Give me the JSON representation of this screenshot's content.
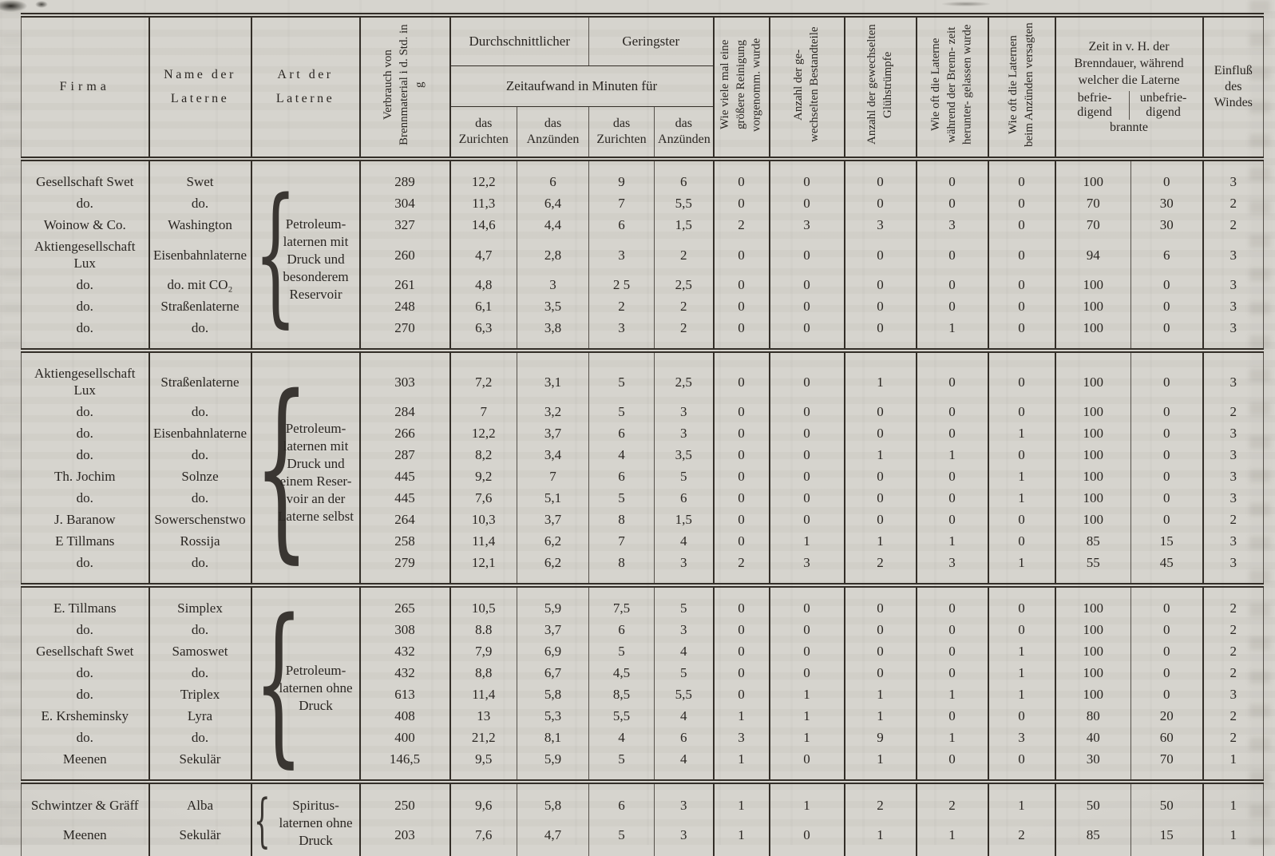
{
  "page": {
    "paper_color": "#d6d4ce",
    "ink_color": "#2a2622"
  },
  "table": {
    "headers": {
      "firma": "Firma",
      "name": "Name der Laterne",
      "art": "Art der Laterne",
      "verbrauch": "Verbrauch von Brennmaterial i d. Std. in g",
      "durchschnittlicher": "Durchschnittlicher",
      "geringster": "Geringster",
      "zeitaufwand": "Zeitaufwand in Minuten für",
      "das_zurichten": "das Zurichten",
      "das_anzuenden": "das Anzünden",
      "reinigung": "Wie viele mal eine größere Reinigung vorgenomm. wurde",
      "bestandteile": "Anzahl der ge- wechselten Bestandteile",
      "gluehstruempfe": "Anzahl der gewechselten Glühstrümpfe",
      "heruntergelassen": "Wie oft die Laterne während der Brenn- zeit herunter- gelassen wurde",
      "versagten": "Wie oft die Laternen beim Anzünden versagten",
      "zeit_title": "Zeit in v. H. der Brenndauer, während welcher die Laterne",
      "befriedigend": "befrie- digend",
      "unbefriedigend": "unbefrie- digend",
      "brannte": "brannte",
      "einfluss": "Einfluß des Windes"
    },
    "value_columns": [
      "verbrauch",
      "zurichten_durchschnittlich",
      "anzuenden_durchschnittlich",
      "zurichten_geringster",
      "anzuenden_geringster",
      "reinigungen",
      "bestandteile",
      "gluehstruempfe",
      "heruntergelassen",
      "versagten",
      "befriedigend_vh",
      "unbefriedigend_vh",
      "einfluss_windes"
    ],
    "sections": [
      {
        "art_lines": [
          "Petroleum-",
          "laternen mit",
          "Druck und",
          "besonderem",
          "Reservoir"
        ],
        "rows": [
          {
            "firma": "Gesellschaft Swet",
            "name": "Swet",
            "values": [
              "289",
              "12,2",
              "6",
              "9",
              "6",
              "0",
              "0",
              "0",
              "0",
              "0",
              "100",
              "0",
              "3"
            ]
          },
          {
            "firma": "do.",
            "name": "do.",
            "values": [
              "304",
              "11,3",
              "6,4",
              "7",
              "5,5",
              "0",
              "0",
              "0",
              "0",
              "0",
              "70",
              "30",
              "2"
            ]
          },
          {
            "firma": "Woinow & Co.",
            "name": "Washington",
            "values": [
              "327",
              "14,6",
              "4,4",
              "6",
              "1,5",
              "2",
              "3",
              "3",
              "3",
              "0",
              "70",
              "30",
              "2"
            ]
          },
          {
            "firma": "Aktiengesellschaft Lux",
            "name": "Eisenbahnlaterne",
            "values": [
              "260",
              "4,7",
              "2,8",
              "3",
              "2",
              "0",
              "0",
              "0",
              "0",
              "0",
              "94",
              "6",
              "3"
            ]
          },
          {
            "firma": "do.",
            "name": "do. mit CO₂",
            "values": [
              "261",
              "4,8",
              "3",
              "2 5",
              "2,5",
              "0",
              "0",
              "0",
              "0",
              "0",
              "100",
              "0",
              "3"
            ]
          },
          {
            "firma": "do.",
            "name": "Straßenlaterne",
            "values": [
              "248",
              "6,1",
              "3,5",
              "2",
              "2",
              "0",
              "0",
              "0",
              "0",
              "0",
              "100",
              "0",
              "3"
            ]
          },
          {
            "firma": "do.",
            "name": "do.",
            "values": [
              "270",
              "6,3",
              "3,8",
              "3",
              "2",
              "0",
              "0",
              "0",
              "1",
              "0",
              "100",
              "0",
              "3"
            ]
          }
        ]
      },
      {
        "art_lines": [
          "Petroleum-",
          "laternen mit",
          "Druck und",
          "einem Reser-",
          "voir an der",
          "Laterne selbst"
        ],
        "rows": [
          {
            "firma": "Aktiengesellschaft Lux",
            "name": "Straßenlaterne",
            "values": [
              "303",
              "7,2",
              "3,1",
              "5",
              "2,5",
              "0",
              "0",
              "1",
              "0",
              "0",
              "100",
              "0",
              "3"
            ]
          },
          {
            "firma": "do.",
            "name": "do.",
            "values": [
              "284",
              "7",
              "3,2",
              "5",
              "3",
              "0",
              "0",
              "0",
              "0",
              "0",
              "100",
              "0",
              "2"
            ]
          },
          {
            "firma": "do.",
            "name": "Eisenbahnlaterne",
            "values": [
              "266",
              "12,2",
              "3,7",
              "6",
              "3",
              "0",
              "0",
              "0",
              "0",
              "1",
              "100",
              "0",
              "3"
            ]
          },
          {
            "firma": "do.",
            "name": "do.",
            "values": [
              "287",
              "8,2",
              "3,4",
              "4",
              "3,5",
              "0",
              "0",
              "1",
              "1",
              "0",
              "100",
              "0",
              "3"
            ]
          },
          {
            "firma": "Th. Jochim",
            "name": "Solnze",
            "values": [
              "445",
              "9,2",
              "7",
              "6",
              "5",
              "0",
              "0",
              "0",
              "0",
              "1",
              "100",
              "0",
              "3"
            ]
          },
          {
            "firma": "do.",
            "name": "do.",
            "values": [
              "445",
              "7,6",
              "5,1",
              "5",
              "6",
              "0",
              "0",
              "0",
              "0",
              "1",
              "100",
              "0",
              "3"
            ]
          },
          {
            "firma": "J. Baranow",
            "name": "Sowerschenstwo",
            "values": [
              "264",
              "10,3",
              "3,7",
              "8",
              "1,5",
              "0",
              "0",
              "0",
              "0",
              "0",
              "100",
              "0",
              "2"
            ]
          },
          {
            "firma": "E Tillmans",
            "name": "Rossija",
            "values": [
              "258",
              "11,4",
              "6,2",
              "7",
              "4",
              "0",
              "1",
              "1",
              "1",
              "0",
              "85",
              "15",
              "3"
            ]
          },
          {
            "firma": "do.",
            "name": "do.",
            "values": [
              "279",
              "12,1",
              "6,2",
              "8",
              "3",
              "2",
              "3",
              "2",
              "3",
              "1",
              "55",
              "45",
              "3"
            ]
          }
        ]
      },
      {
        "art_lines": [
          "Petroleum-",
          "laternen ohne",
          "Druck"
        ],
        "rows": [
          {
            "firma": "E. Tillmans",
            "name": "Simplex",
            "values": [
              "265",
              "10,5",
              "5,9",
              "7,5",
              "5",
              "0",
              "0",
              "0",
              "0",
              "0",
              "100",
              "0",
              "2"
            ]
          },
          {
            "firma": "do.",
            "name": "do.",
            "values": [
              "308",
              "8.8",
              "3,7",
              "6",
              "3",
              "0",
              "0",
              "0",
              "0",
              "0",
              "100",
              "0",
              "2"
            ]
          },
          {
            "firma": "Gesellschaft Swet",
            "name": "Samoswet",
            "values": [
              "432",
              "7,9",
              "6,9",
              "5",
              "4",
              "0",
              "0",
              "0",
              "0",
              "1",
              "100",
              "0",
              "2"
            ]
          },
          {
            "firma": "do.",
            "name": "do.",
            "values": [
              "432",
              "8,8",
              "6,7",
              "4,5",
              "5",
              "0",
              "0",
              "0",
              "0",
              "1",
              "100",
              "0",
              "2"
            ]
          },
          {
            "firma": "do.",
            "name": "Triplex",
            "values": [
              "613",
              "11,4",
              "5,8",
              "8,5",
              "5,5",
              "0",
              "1",
              "1",
              "1",
              "1",
              "100",
              "0",
              "3"
            ]
          },
          {
            "firma": "E. Krsheminsky",
            "name": "Lyra",
            "values": [
              "408",
              "13",
              "5,3",
              "5,5",
              "4",
              "1",
              "1",
              "1",
              "0",
              "0",
              "80",
              "20",
              "2"
            ]
          },
          {
            "firma": "do.",
            "name": "do.",
            "values": [
              "400",
              "21,2",
              "8,1",
              "4",
              "6",
              "3",
              "1",
              "9",
              "1",
              "3",
              "40",
              "60",
              "2"
            ]
          },
          {
            "firma": "Meenen",
            "name": "Sekulär",
            "values": [
              "146,5",
              "9,5",
              "5,9",
              "5",
              "4",
              "1",
              "0",
              "1",
              "0",
              "0",
              "30",
              "70",
              "1"
            ]
          }
        ]
      },
      {
        "art_lines": [
          "Spiritus-",
          "laternen ohne",
          "Druck"
        ],
        "rows": [
          {
            "firma": "Schwintzer & Gräff",
            "name": "Alba",
            "values": [
              "250",
              "9,6",
              "5,8",
              "6",
              "3",
              "1",
              "1",
              "2",
              "2",
              "1",
              "50",
              "50",
              "1"
            ]
          },
          {
            "firma": "Meenen",
            "name": "Sekulär",
            "values": [
              "203",
              "7,6",
              "4,7",
              "5",
              "3",
              "1",
              "0",
              "1",
              "1",
              "2",
              "85",
              "15",
              "1"
            ]
          }
        ]
      }
    ]
  }
}
